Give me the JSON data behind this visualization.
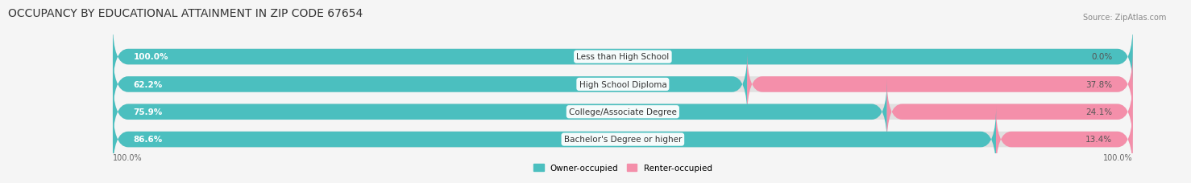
{
  "title": "OCCUPANCY BY EDUCATIONAL ATTAINMENT IN ZIP CODE 67654",
  "source": "Source: ZipAtlas.com",
  "categories": [
    "Less than High School",
    "High School Diploma",
    "College/Associate Degree",
    "Bachelor's Degree or higher"
  ],
  "owner_values": [
    100.0,
    62.2,
    75.9,
    86.6
  ],
  "renter_values": [
    0.0,
    37.8,
    24.1,
    13.4
  ],
  "owner_color": "#4BBFBF",
  "renter_color": "#F48FAA",
  "bar_bg_color": "#E8E8E8",
  "bg_color": "#F5F5F5",
  "bar_height": 0.55,
  "xlim": [
    0,
    100
  ],
  "legend_owner": "Owner-occupied",
  "legend_renter": "Renter-occupied",
  "title_fontsize": 10,
  "label_fontsize": 7.5,
  "tick_fontsize": 7,
  "source_fontsize": 7
}
